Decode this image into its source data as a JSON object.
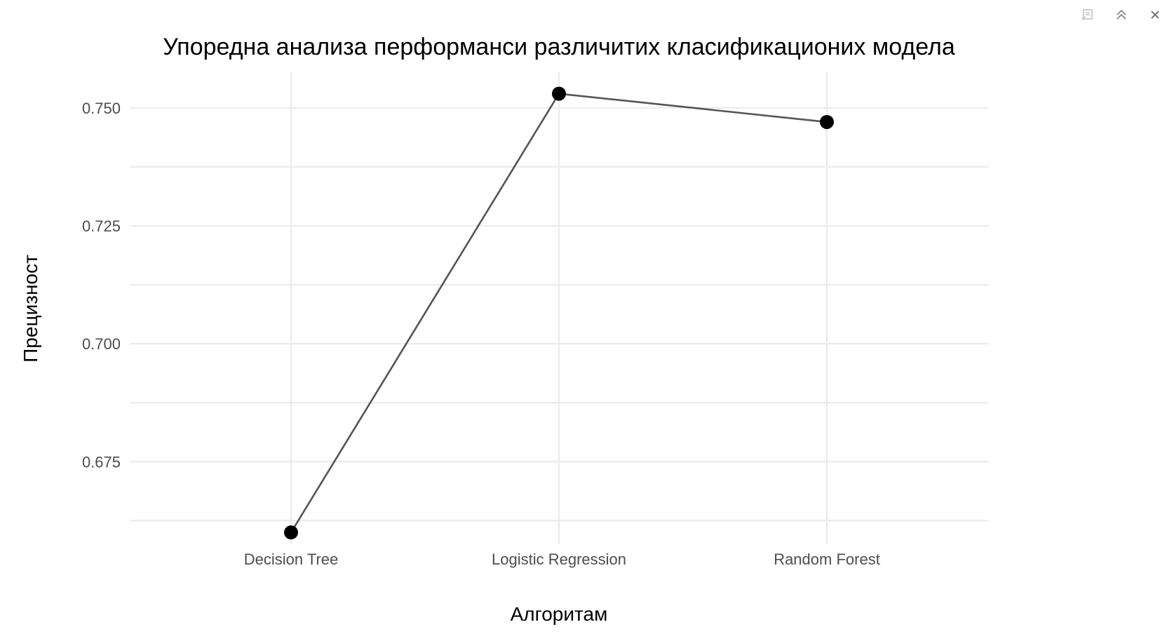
{
  "toolbar": {
    "icons": [
      "pop-out-icon",
      "collapse-icon",
      "close-icon"
    ]
  },
  "chart_data": {
    "type": "line",
    "title": "Упоредна анализа перформанси различитих класификационих модела",
    "xlabel": "Алгоритам",
    "ylabel": "Прецизност",
    "categories": [
      "Decision Tree",
      "Logistic Regression",
      "Random Forest"
    ],
    "series": [
      {
        "values": [
          0.66,
          0.753,
          0.747
        ]
      }
    ],
    "ylim": [
      0.6575,
      0.7577
    ],
    "yticks": [
      0.675,
      0.7,
      0.725,
      0.75
    ],
    "ytick_labels": [
      "0.675",
      "0.700",
      "0.725",
      "0.750"
    ],
    "grid": true,
    "legend": "none",
    "colors": {
      "line": "#555555",
      "point": "#000000",
      "grid": "#ebebeb",
      "text": "#4d4d4d"
    }
  }
}
